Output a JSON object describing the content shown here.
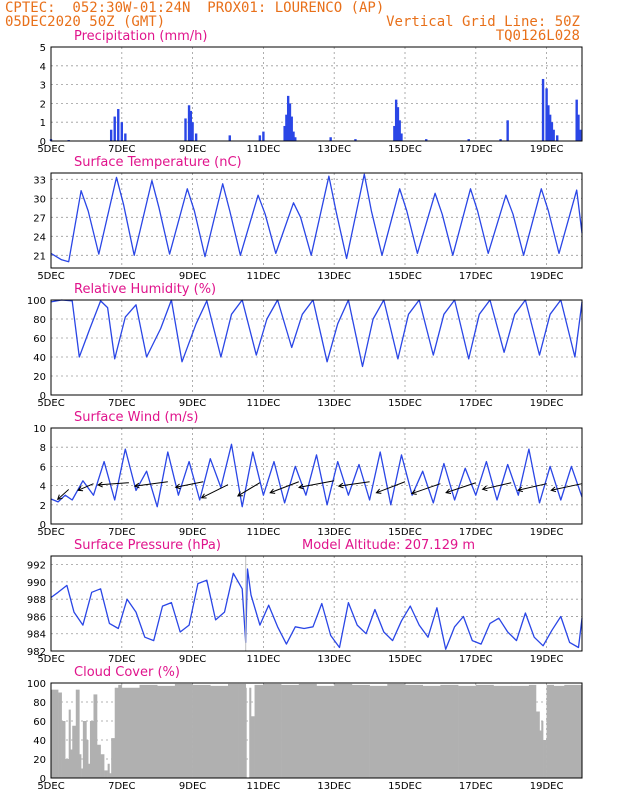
{
  "header": {
    "line1_left": "CPTEC:  052:30W-01:24N  PROX01: LOURENCO (AP)",
    "line2_left": "05DEC2020 50Z (GMT)",
    "line2_right": "Vertical Grid Line: 50Z",
    "line3_right": "TQ0126L028"
  },
  "colors": {
    "line": "#2a46e6",
    "title": "#e0148c",
    "header": "#e8701a",
    "cloud": "#b0b0b0"
  },
  "x_axis": {
    "day_range": [
      5,
      20
    ],
    "tick_days": [
      5,
      7,
      9,
      11,
      13,
      15,
      17,
      19
    ],
    "tick_labels": [
      "5DEC",
      "7DEC",
      "9DEC",
      "11DEC",
      "13DEC",
      "15DEC",
      "17DEC",
      "19DEC"
    ]
  },
  "chart_data": [
    {
      "id": "precip",
      "type": "bar",
      "title": "Precipitation (mm/h)",
      "ylim": [
        0,
        5
      ],
      "yticks": [
        0,
        1,
        2,
        3,
        4,
        5
      ],
      "x": [
        5.0,
        5.5,
        6.7,
        6.8,
        6.9,
        7.0,
        7.1,
        8.8,
        8.9,
        8.95,
        9.0,
        9.1,
        10.05,
        10.9,
        11.0,
        11.6,
        11.65,
        11.7,
        11.75,
        11.8,
        11.85,
        11.9,
        12.9,
        13.6,
        14.7,
        14.75,
        14.8,
        14.85,
        14.9,
        15.6,
        16.8,
        17.7,
        17.9,
        18.9,
        19.0,
        19.05,
        19.1,
        19.15,
        19.2,
        19.3,
        19.85,
        19.9,
        19.95
      ],
      "values": [
        0.1,
        0.05,
        0.6,
        1.3,
        1.7,
        1.0,
        0.4,
        1.2,
        1.9,
        1.6,
        1.0,
        0.4,
        0.3,
        0.3,
        0.5,
        0.8,
        1.4,
        2.4,
        2.0,
        1.3,
        0.5,
        0.2,
        0.2,
        0.1,
        0.8,
        2.2,
        1.8,
        1.1,
        0.4,
        0.1,
        0.1,
        0.1,
        1.1,
        3.3,
        2.8,
        1.9,
        1.4,
        1.0,
        0.6,
        0.3,
        2.2,
        1.4,
        0.6
      ]
    },
    {
      "id": "temperature",
      "type": "line",
      "title": "Surface Temperature (nC)",
      "ylim": [
        19,
        34
      ],
      "yticks": [
        21,
        24,
        27,
        30,
        33
      ],
      "x": [
        5.0,
        5.3,
        5.5,
        5.85,
        6.05,
        6.35,
        6.85,
        7.05,
        7.35,
        7.85,
        8.05,
        8.35,
        8.85,
        9.05,
        9.35,
        9.85,
        10.05,
        10.35,
        10.85,
        11.05,
        11.35,
        11.85,
        12.05,
        12.35,
        12.85,
        13.05,
        13.35,
        13.85,
        14.05,
        14.35,
        14.85,
        15.05,
        15.35,
        15.85,
        16.05,
        16.35,
        16.85,
        17.05,
        17.35,
        17.85,
        18.05,
        18.35,
        18.85,
        19.05,
        19.35,
        19.85,
        20.0
      ],
      "values": [
        21.3,
        20.3,
        20.0,
        31.2,
        28.0,
        21.2,
        33.3,
        29.0,
        21.0,
        32.8,
        28.5,
        21.2,
        31.5,
        28.0,
        20.8,
        32.3,
        28.0,
        21.0,
        30.5,
        27.5,
        21.3,
        29.3,
        27.0,
        21.0,
        33.5,
        28.0,
        20.5,
        33.8,
        28.0,
        21.0,
        31.5,
        28.0,
        21.3,
        30.8,
        27.5,
        21.0,
        31.5,
        28.0,
        21.3,
        30.5,
        27.5,
        21.0,
        31.5,
        28.0,
        21.3,
        31.3,
        24.5
      ]
    },
    {
      "id": "humidity",
      "type": "line",
      "title": "Relative Humidity (%)",
      "ylim": [
        0,
        100
      ],
      "yticks": [
        0,
        20,
        40,
        60,
        80,
        100
      ],
      "x": [
        5.0,
        5.3,
        5.6,
        5.8,
        6.1,
        6.4,
        6.6,
        6.8,
        7.1,
        7.4,
        7.7,
        8.1,
        8.4,
        8.7,
        9.1,
        9.4,
        9.8,
        10.1,
        10.4,
        10.8,
        11.1,
        11.4,
        11.8,
        12.1,
        12.4,
        12.8,
        13.1,
        13.4,
        13.8,
        14.1,
        14.4,
        14.8,
        15.1,
        15.4,
        15.8,
        16.1,
        16.4,
        16.8,
        17.1,
        17.4,
        17.8,
        18.1,
        18.4,
        18.8,
        19.1,
        19.4,
        19.8,
        20.0
      ],
      "values": [
        98,
        100,
        99,
        40,
        70,
        99,
        92,
        38,
        82,
        95,
        40,
        70,
        100,
        35,
        75,
        99,
        40,
        85,
        100,
        42,
        80,
        100,
        50,
        85,
        100,
        35,
        75,
        100,
        30,
        80,
        100,
        38,
        85,
        100,
        42,
        85,
        100,
        38,
        85,
        100,
        45,
        85,
        100,
        42,
        85,
        100,
        40,
        98
      ]
    },
    {
      "id": "wind",
      "type": "line",
      "title": "Surface Wind (m/s)",
      "ylim": [
        0,
        10
      ],
      "yticks": [
        0,
        2,
        4,
        6,
        8,
        10
      ],
      "x": [
        5.0,
        5.2,
        5.4,
        5.6,
        5.9,
        6.2,
        6.5,
        6.8,
        7.1,
        7.4,
        7.7,
        8.0,
        8.3,
        8.6,
        8.9,
        9.2,
        9.5,
        9.8,
        10.1,
        10.4,
        10.7,
        11.0,
        11.3,
        11.6,
        11.9,
        12.2,
        12.5,
        12.8,
        13.1,
        13.4,
        13.7,
        14.0,
        14.3,
        14.6,
        14.9,
        15.2,
        15.5,
        15.8,
        16.1,
        16.4,
        16.7,
        17.0,
        17.3,
        17.6,
        17.9,
        18.2,
        18.5,
        18.8,
        19.1,
        19.4,
        19.7,
        20.0
      ],
      "values": [
        2.6,
        2.3,
        3.0,
        2.5,
        4.5,
        3.0,
        6.5,
        2.5,
        7.8,
        3.5,
        5.5,
        1.8,
        7.5,
        3.0,
        6.5,
        2.5,
        6.8,
        3.8,
        8.3,
        1.8,
        7.5,
        3.0,
        6.5,
        2.2,
        6.0,
        3.0,
        7.2,
        2.0,
        6.5,
        3.0,
        6.2,
        2.5,
        7.5,
        2.0,
        7.2,
        3.0,
        5.5,
        2.2,
        6.3,
        2.5,
        5.8,
        3.0,
        6.5,
        2.5,
        6.2,
        3.0,
        7.8,
        2.2,
        6.0,
        2.5,
        6.0,
        2.8
      ],
      "wind_arrows": [
        {
          "x": 5.5,
          "y": 3.6,
          "u": -1.0,
          "v": -0.9
        },
        {
          "x": 6.2,
          "y": 4.2,
          "u": -1.4,
          "v": -0.6
        },
        {
          "x": 7.2,
          "y": 4.3,
          "u": -2.8,
          "v": -0.2
        },
        {
          "x": 8.3,
          "y": 4.4,
          "u": -3.0,
          "v": -0.4
        },
        {
          "x": 9.3,
          "y": 4.4,
          "u": -2.5,
          "v": -0.5
        },
        {
          "x": 10.0,
          "y": 4.1,
          "u": -2.4,
          "v": -1.2
        },
        {
          "x": 10.9,
          "y": 4.3,
          "u": -2.0,
          "v": -1.2
        },
        {
          "x": 12.0,
          "y": 4.4,
          "u": -2.6,
          "v": -1.0
        },
        {
          "x": 13.0,
          "y": 4.5,
          "u": -3.2,
          "v": -0.6
        },
        {
          "x": 14.0,
          "y": 4.4,
          "u": -2.8,
          "v": -0.4
        },
        {
          "x": 15.0,
          "y": 4.4,
          "u": -2.6,
          "v": -1.0
        },
        {
          "x": 16.0,
          "y": 4.2,
          "u": -2.6,
          "v": -0.9
        },
        {
          "x": 17.0,
          "y": 4.3,
          "u": -2.7,
          "v": -0.9
        },
        {
          "x": 18.0,
          "y": 4.3,
          "u": -2.6,
          "v": -0.6
        },
        {
          "x": 19.0,
          "y": 4.2,
          "u": -2.6,
          "v": -0.6
        },
        {
          "x": 20.0,
          "y": 4.2,
          "u": -2.8,
          "v": -0.6
        }
      ]
    },
    {
      "id": "pressure",
      "type": "line",
      "title": "Surface Pressure (hPa)",
      "subtitle": "Model Altitude: 207.129 m",
      "ylim": [
        982,
        993
      ],
      "yticks": [
        982,
        984,
        986,
        988,
        990,
        992
      ],
      "x": [
        5.0,
        5.2,
        5.45,
        5.65,
        5.9,
        6.15,
        6.4,
        6.65,
        6.9,
        7.15,
        7.4,
        7.65,
        7.9,
        8.15,
        8.4,
        8.65,
        8.9,
        9.15,
        9.4,
        9.65,
        9.9,
        10.15,
        10.4,
        10.5,
        10.55,
        10.65,
        10.9,
        11.15,
        11.4,
        11.65,
        11.9,
        12.15,
        12.4,
        12.65,
        12.9,
        13.15,
        13.4,
        13.65,
        13.9,
        14.15,
        14.4,
        14.65,
        14.9,
        15.15,
        15.4,
        15.65,
        15.9,
        16.15,
        16.4,
        16.65,
        16.9,
        17.15,
        17.4,
        17.65,
        17.9,
        18.15,
        18.4,
        18.65,
        18.9,
        19.15,
        19.4,
        19.65,
        19.9,
        20.0
      ],
      "values": [
        988.2,
        988.8,
        989.6,
        986.5,
        985.0,
        988.8,
        989.2,
        985.2,
        984.6,
        988.0,
        986.5,
        983.6,
        983.2,
        987.2,
        987.6,
        984.2,
        985.0,
        989.8,
        990.2,
        985.6,
        986.5,
        991.0,
        989.2,
        983.0,
        991.5,
        988.5,
        985.0,
        987.3,
        984.8,
        982.8,
        984.8,
        984.6,
        984.8,
        987.5,
        983.8,
        982.4,
        987.6,
        985.0,
        984.0,
        986.8,
        984.2,
        983.2,
        985.5,
        987.2,
        985.0,
        983.6,
        987.0,
        982.2,
        984.8,
        986.0,
        983.2,
        982.8,
        985.2,
        985.8,
        984.2,
        983.2,
        986.4,
        983.6,
        982.6,
        984.4,
        986.0,
        983.0,
        982.4,
        985.8
      ],
      "reference_line": {
        "x": 10.5,
        "from": 982,
        "to": 993
      }
    },
    {
      "id": "cloud",
      "type": "area",
      "title": "Cloud Cover (%)",
      "ylim": [
        0,
        100
      ],
      "yticks": [
        0,
        20,
        40,
        60,
        80,
        100
      ],
      "x": [
        5.0,
        5.2,
        5.3,
        5.4,
        5.5,
        5.55,
        5.6,
        5.7,
        5.8,
        5.85,
        5.9,
        6.0,
        6.05,
        6.1,
        6.2,
        6.3,
        6.4,
        6.5,
        6.6,
        6.65,
        6.7,
        6.8,
        6.9,
        7.0,
        7.5,
        8.0,
        8.5,
        9.0,
        9.5,
        10.0,
        10.3,
        10.5,
        10.52,
        10.6,
        10.65,
        10.75,
        11.0,
        11.5,
        12.0,
        12.5,
        13.0,
        13.5,
        14.0,
        14.5,
        15.0,
        15.5,
        16.0,
        16.5,
        17.0,
        17.5,
        18.0,
        18.5,
        18.7,
        18.8,
        18.85,
        18.9,
        19.0,
        19.2,
        19.5,
        20.0
      ],
      "values": [
        93,
        90,
        60,
        20,
        72,
        30,
        55,
        93,
        25,
        10,
        60,
        40,
        15,
        60,
        88,
        35,
        25,
        8,
        15,
        5,
        42,
        95,
        98,
        95,
        98,
        97,
        99,
        98,
        97,
        99,
        99,
        95,
        0,
        95,
        65,
        98,
        99,
        98,
        99,
        97,
        99,
        98,
        97,
        99,
        98,
        97,
        98,
        97,
        98,
        97,
        97,
        98,
        70,
        50,
        60,
        40,
        98,
        97,
        98,
        97
      ]
    }
  ]
}
